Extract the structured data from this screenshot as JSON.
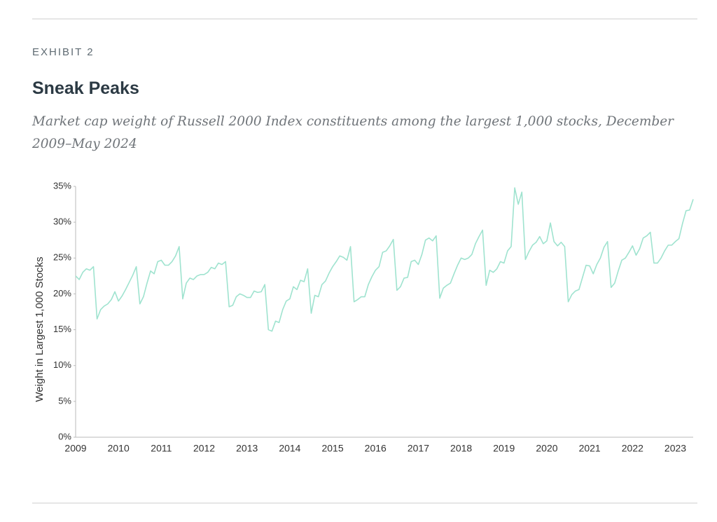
{
  "exhibit": "EXHIBIT 2",
  "chart_data": {
    "type": "line",
    "title": "Sneak Peaks",
    "subtitle": "Market cap weight of Russell 2000 Index constituents among the largest 1,000 stocks, December 2009–May 2024",
    "y_label": "Weight in Largest 1,000 Stocks",
    "categories": [
      "2009",
      null,
      null,
      null,
      null,
      null,
      null,
      null,
      null,
      null,
      null,
      null,
      "2010",
      null,
      null,
      null,
      null,
      null,
      null,
      null,
      null,
      null,
      null,
      null,
      "2011",
      null,
      null,
      null,
      null,
      null,
      null,
      null,
      null,
      null,
      null,
      null,
      "2012",
      null,
      null,
      null,
      null,
      null,
      null,
      null,
      null,
      null,
      null,
      null,
      "2013",
      null,
      null,
      null,
      null,
      null,
      null,
      null,
      null,
      null,
      null,
      null,
      "2014",
      null,
      null,
      null,
      null,
      null,
      null,
      null,
      null,
      null,
      null,
      null,
      "2015",
      null,
      null,
      null,
      null,
      null,
      null,
      null,
      null,
      null,
      null,
      null,
      "2016",
      null,
      null,
      null,
      null,
      null,
      null,
      null,
      null,
      null,
      null,
      null,
      "2017",
      null,
      null,
      null,
      null,
      null,
      null,
      null,
      null,
      null,
      null,
      null,
      "2018",
      null,
      null,
      null,
      null,
      null,
      null,
      null,
      null,
      null,
      null,
      null,
      "2019",
      null,
      null,
      null,
      null,
      null,
      null,
      null,
      null,
      null,
      null,
      null,
      "2020",
      null,
      null,
      null,
      null,
      null,
      null,
      null,
      null,
      null,
      null,
      null,
      "2021",
      null,
      null,
      null,
      null,
      null,
      null,
      null,
      null,
      null,
      null,
      null,
      "2022",
      null,
      null,
      null,
      null,
      null,
      null,
      null,
      null,
      null,
      null,
      null,
      "2023",
      null,
      null,
      null,
      null,
      null
    ],
    "series": [
      {
        "name": "Weight",
        "color": "#9fe3cf",
        "values": [
          22.5,
          22,
          23,
          23.5,
          23.3,
          23.8,
          16.5,
          17.8,
          18.3,
          18.6,
          19.2,
          20.3,
          19,
          19.7,
          20.6,
          21.6,
          22.6,
          23.8,
          18.6,
          19.6,
          21.5,
          23.2,
          22.8,
          24.5,
          24.7,
          24,
          24,
          24.5,
          25.3,
          26.6,
          19.3,
          21.5,
          22.2,
          22,
          22.5,
          22.7,
          22.7,
          23,
          23.7,
          23.5,
          24.3,
          24.1,
          24.5,
          18.2,
          18.4,
          19.6,
          20,
          19.8,
          19.5,
          19.5,
          20.4,
          20.2,
          20.3,
          21.3,
          15,
          14.8,
          16.2,
          16,
          17.8,
          19,
          19.3,
          21,
          20.6,
          21.9,
          21.7,
          23.5,
          17.3,
          19.8,
          19.6,
          21.3,
          21.8,
          22.9,
          23.8,
          24.5,
          25.3,
          25.1,
          24.7,
          26.6,
          18.9,
          19.2,
          19.6,
          19.6,
          21.3,
          22.4,
          23.3,
          23.8,
          25.8,
          26,
          26.7,
          27.6,
          20.5,
          21,
          22.2,
          22.3,
          24.5,
          24.7,
          24.1,
          25.5,
          27.5,
          27.8,
          27.4,
          28.1,
          19.4,
          20.8,
          21.2,
          21.5,
          22.8,
          24,
          25,
          24.8,
          25,
          25.5,
          27,
          28,
          28.9,
          21.2,
          23.3,
          23,
          23.5,
          24.5,
          24.3,
          26,
          26.6,
          34.8,
          32.5,
          34.2,
          24.8,
          25.9,
          26.8,
          27.2,
          28,
          27,
          27.4,
          29.9,
          27.3,
          26.7,
          27.2,
          26.6,
          18.9,
          19.9,
          20.4,
          20.6,
          22.3,
          24,
          23.9,
          22.8,
          24.1,
          25,
          26.5,
          27.3,
          20.9,
          21.5,
          23.2,
          24.7,
          25,
          25.8,
          26.7,
          25.4,
          26.3,
          27.8,
          28.1,
          28.6,
          24.3,
          24.3,
          25,
          26,
          26.8,
          26.8,
          27.3,
          27.7,
          29.8,
          31.6,
          31.7,
          33.2
        ]
      }
    ],
    "ylim": [
      0,
      35
    ],
    "yticks": [
      {
        "value": 0,
        "label": "0%"
      },
      {
        "value": 5,
        "label": "5%"
      },
      {
        "value": 10,
        "label": "10%"
      },
      {
        "value": 15,
        "label": "15%"
      },
      {
        "value": 20,
        "label": "20%"
      },
      {
        "value": 25,
        "label": "25%"
      },
      {
        "value": 30,
        "label": "30%"
      },
      {
        "value": 35,
        "label": "35%"
      }
    ],
    "grid": false
  }
}
